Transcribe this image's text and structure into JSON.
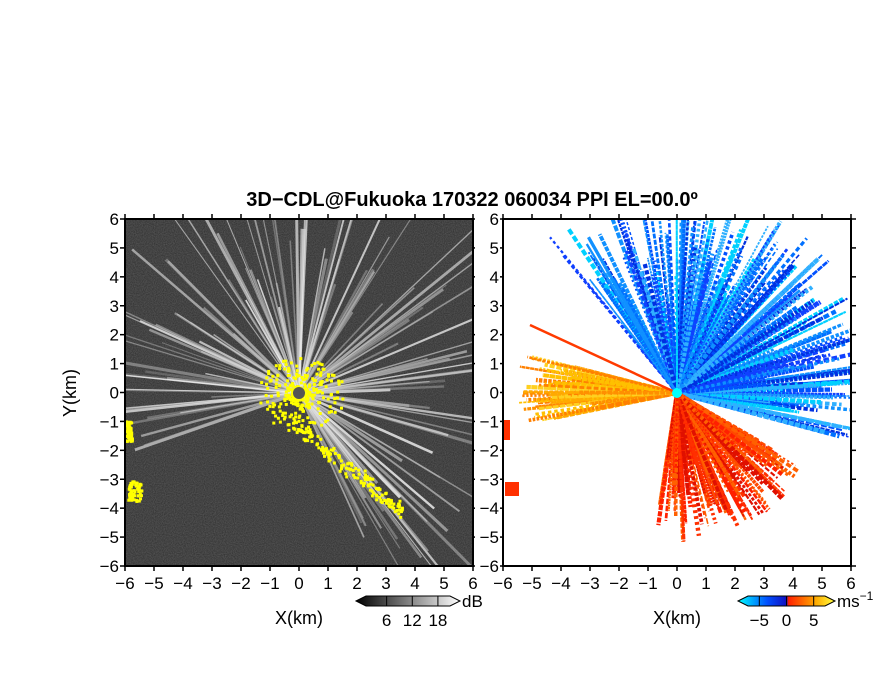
{
  "chart_data": {
    "type": "heatmap",
    "title": "3D−CDL@Fukuoka 170322 060034 PPI EL=00.0º",
    "panels": [
      {
        "name": "reflectivity",
        "xlabel": "X(km)",
        "ylabel": "Y(km)",
        "xlim": [
          -6,
          6
        ],
        "ylim": [
          -6,
          6
        ],
        "xticks": [
          "−6",
          "−5",
          "−4",
          "−3",
          "−2",
          "−1",
          "0",
          "1",
          "2",
          "3",
          "4",
          "5",
          "6"
        ],
        "yticks": [
          "−6",
          "−5",
          "−4",
          "−3",
          "−2",
          "−1",
          "0",
          "1",
          "2",
          "3",
          "4",
          "5",
          "6"
        ],
        "colorbar": {
          "unit": "dB",
          "ticks": [
            "6",
            "12",
            "18"
          ],
          "range": [
            0,
            22
          ],
          "colors": [
            "#000000",
            "#ffffff"
          ]
        }
      },
      {
        "name": "doppler-velocity",
        "xlabel": "X(km)",
        "xlim": [
          -6,
          6
        ],
        "ylim": [
          -6,
          6
        ],
        "xticks": [
          "−6",
          "−5",
          "−4",
          "−3",
          "−2",
          "−1",
          "0",
          "1",
          "2",
          "3",
          "4",
          "5",
          "6"
        ],
        "yticks": [
          "−6",
          "−5",
          "−4",
          "−3",
          "−2",
          "−1",
          "0",
          "1",
          "2",
          "3",
          "4",
          "5",
          "6"
        ],
        "colorbar": {
          "unit": "ms",
          "unit_exp": "−1",
          "ticks": [
            "−5",
            "0",
            "5"
          ],
          "range": [
            -8,
            8
          ],
          "colors": [
            "#00ffff",
            "#0050ff",
            "#ff2000",
            "#ffaa00",
            "#ffff40"
          ]
        }
      }
    ]
  }
}
